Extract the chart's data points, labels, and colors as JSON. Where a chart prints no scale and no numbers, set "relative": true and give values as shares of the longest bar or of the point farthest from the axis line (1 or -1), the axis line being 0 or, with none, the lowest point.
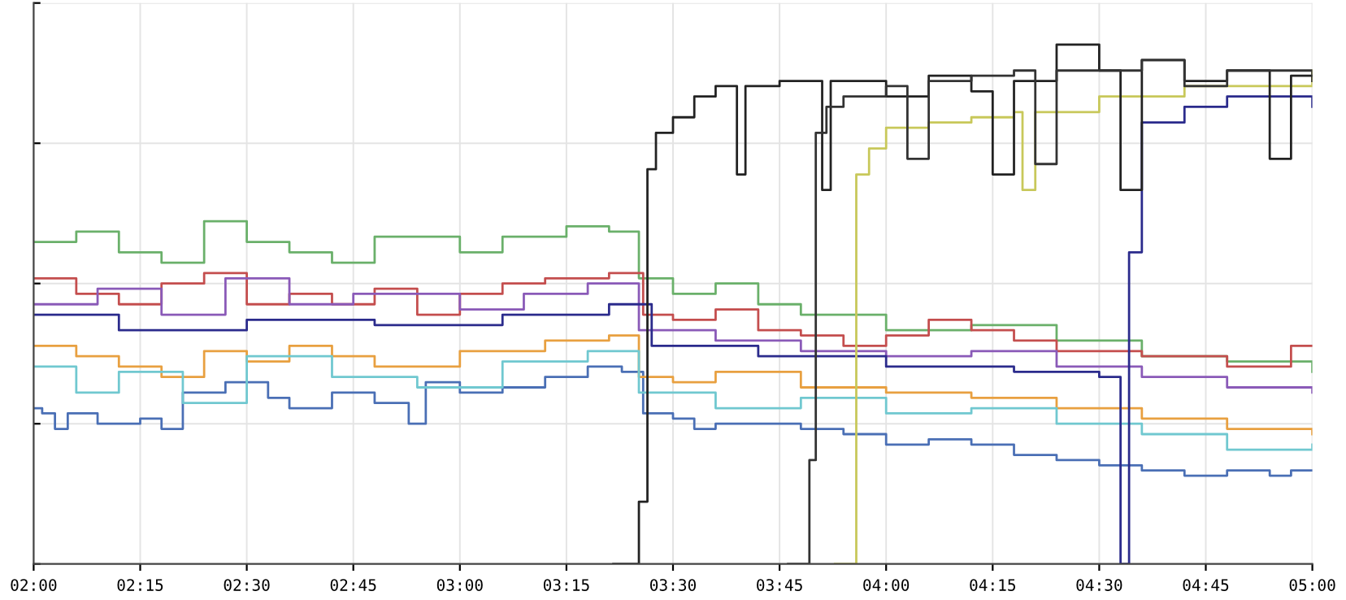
{
  "chart_data": {
    "type": "step",
    "relative": true,
    "grid": true,
    "tick_labels": "x",
    "line_style": "solid",
    "xlim": [
      2.0,
      5.0
    ],
    "xticks": [
      {
        "value": 2.0,
        "label": "02:00"
      },
      {
        "value": 2.25,
        "label": "02:15"
      },
      {
        "value": 2.5,
        "label": "02:30"
      },
      {
        "value": 2.75,
        "label": "02:45"
      },
      {
        "value": 3.0,
        "label": "03:00"
      },
      {
        "value": 3.25,
        "label": "03:15"
      },
      {
        "value": 3.5,
        "label": "03:30"
      },
      {
        "value": 3.75,
        "label": "03:45"
      },
      {
        "value": 4.0,
        "label": "04:00"
      },
      {
        "value": 4.25,
        "label": "04:15"
      },
      {
        "value": 4.5,
        "label": "04:30"
      },
      {
        "value": 4.75,
        "label": "04:45"
      },
      {
        "value": 5.0,
        "label": "05:00"
      }
    ],
    "series": [
      {
        "color": "#4a6fb5",
        "x": [
          2.0,
          2.02,
          2.05,
          2.08,
          2.15,
          2.25,
          2.3,
          2.35,
          2.45,
          2.55,
          2.6,
          2.7,
          2.8,
          2.88,
          2.92,
          3.0,
          3.1,
          3.2,
          3.3,
          3.38,
          3.43,
          3.5,
          3.55,
          3.6,
          3.7,
          3.8,
          3.9,
          4.0,
          4.1,
          4.2,
          4.3,
          4.4,
          4.5,
          4.6,
          4.7,
          4.8,
          4.9,
          4.95,
          5.0
        ],
        "values": [
          0.3,
          0.29,
          0.26,
          0.29,
          0.27,
          0.28,
          0.26,
          0.33,
          0.35,
          0.32,
          0.3,
          0.33,
          0.31,
          0.27,
          0.35,
          0.33,
          0.34,
          0.36,
          0.38,
          0.37,
          0.29,
          0.28,
          0.26,
          0.27,
          0.27,
          0.26,
          0.25,
          0.23,
          0.24,
          0.23,
          0.21,
          0.2,
          0.19,
          0.18,
          0.17,
          0.18,
          0.17,
          0.18,
          0.18
        ]
      },
      {
        "color": "#6ab06a",
        "x": [
          2.0,
          2.1,
          2.2,
          2.3,
          2.4,
          2.5,
          2.6,
          2.7,
          2.8,
          3.0,
          3.1,
          3.25,
          3.35,
          3.42,
          3.5,
          3.6,
          3.7,
          3.8,
          4.0,
          4.2,
          4.4,
          4.6,
          4.8,
          5.0
        ],
        "values": [
          0.62,
          0.64,
          0.6,
          0.58,
          0.66,
          0.62,
          0.6,
          0.58,
          0.63,
          0.6,
          0.63,
          0.65,
          0.64,
          0.55,
          0.52,
          0.54,
          0.5,
          0.48,
          0.45,
          0.46,
          0.43,
          0.4,
          0.39,
          0.37
        ]
      },
      {
        "color": "#c44e4e",
        "x": [
          2.0,
          2.1,
          2.2,
          2.3,
          2.4,
          2.5,
          2.6,
          2.7,
          2.8,
          2.9,
          3.0,
          3.1,
          3.2,
          3.35,
          3.43,
          3.5,
          3.6,
          3.7,
          3.8,
          3.9,
          4.0,
          4.1,
          4.2,
          4.3,
          4.4,
          4.6,
          4.8,
          4.95,
          5.0
        ],
        "values": [
          0.55,
          0.52,
          0.5,
          0.54,
          0.56,
          0.5,
          0.52,
          0.5,
          0.53,
          0.48,
          0.52,
          0.54,
          0.55,
          0.56,
          0.48,
          0.47,
          0.49,
          0.45,
          0.44,
          0.42,
          0.44,
          0.47,
          0.45,
          0.43,
          0.41,
          0.4,
          0.38,
          0.42,
          0.42
        ]
      },
      {
        "color": "#8a5ab8",
        "x": [
          2.0,
          2.15,
          2.3,
          2.45,
          2.6,
          2.75,
          3.0,
          3.15,
          3.3,
          3.42,
          3.6,
          3.8,
          4.0,
          4.2,
          4.4,
          4.6,
          4.8,
          5.0
        ],
        "values": [
          0.5,
          0.53,
          0.48,
          0.55,
          0.5,
          0.52,
          0.49,
          0.52,
          0.54,
          0.45,
          0.43,
          0.41,
          0.4,
          0.41,
          0.38,
          0.36,
          0.34,
          0.33
        ]
      },
      {
        "color": "#e8a040",
        "x": [
          2.0,
          2.1,
          2.2,
          2.3,
          2.4,
          2.5,
          2.6,
          2.7,
          2.8,
          3.0,
          3.2,
          3.35,
          3.42,
          3.5,
          3.6,
          3.8,
          4.0,
          4.2,
          4.4,
          4.6,
          4.8,
          5.0
        ],
        "values": [
          0.42,
          0.4,
          0.38,
          0.36,
          0.41,
          0.39,
          0.42,
          0.4,
          0.38,
          0.41,
          0.43,
          0.44,
          0.36,
          0.35,
          0.37,
          0.34,
          0.33,
          0.32,
          0.3,
          0.28,
          0.26,
          0.25
        ]
      },
      {
        "color": "#70c8d0",
        "x": [
          2.0,
          2.1,
          2.2,
          2.35,
          2.5,
          2.7,
          2.9,
          3.1,
          3.3,
          3.42,
          3.6,
          3.8,
          4.0,
          4.2,
          4.4,
          4.6,
          4.8,
          5.0
        ],
        "values": [
          0.38,
          0.33,
          0.37,
          0.31,
          0.4,
          0.36,
          0.34,
          0.39,
          0.41,
          0.33,
          0.3,
          0.32,
          0.29,
          0.3,
          0.27,
          0.25,
          0.22,
          0.23
        ]
      },
      {
        "color": "#2b2b8c",
        "x": [
          2.0,
          2.2,
          2.5,
          2.8,
          3.1,
          3.35,
          3.45,
          3.7,
          4.0,
          4.3,
          4.5,
          4.55,
          4.57,
          4.6,
          4.7,
          4.8,
          4.9,
          5.0
        ],
        "values": [
          0.48,
          0.45,
          0.47,
          0.46,
          0.48,
          0.5,
          0.42,
          0.4,
          0.38,
          0.37,
          0.36,
          0.0,
          0.6,
          0.85,
          0.88,
          0.9,
          0.9,
          0.88
        ]
      },
      {
        "color": "#c8c85a",
        "x": [
          3.88,
          3.93,
          3.96,
          4.0,
          4.1,
          4.2,
          4.3,
          4.32,
          4.35,
          4.5,
          4.7,
          5.0
        ],
        "values": [
          0.0,
          0.75,
          0.8,
          0.84,
          0.85,
          0.86,
          0.87,
          0.72,
          0.87,
          0.9,
          0.92,
          0.95
        ]
      },
      {
        "color": "#222222",
        "x": [
          3.36,
          3.42,
          3.44,
          3.46,
          3.5,
          3.55,
          3.6,
          3.65,
          3.67,
          3.75,
          3.85,
          3.87,
          4.0,
          4.1,
          4.2,
          4.25,
          4.3,
          4.4,
          4.5,
          4.55,
          4.6,
          4.7,
          4.8,
          4.9,
          4.95,
          5.0
        ],
        "values": [
          0.0,
          0.12,
          0.76,
          0.83,
          0.86,
          0.9,
          0.92,
          0.75,
          0.92,
          0.93,
          0.72,
          0.93,
          0.9,
          0.94,
          0.91,
          0.75,
          0.93,
          1.0,
          0.95,
          0.72,
          0.97,
          0.93,
          0.95,
          0.78,
          0.94,
          0.93
        ]
      },
      {
        "color": "#333333",
        "x": [
          3.77,
          3.82,
          3.835,
          3.86,
          3.9,
          4.0,
          4.05,
          4.1,
          4.2,
          4.3,
          4.35,
          4.4,
          4.6,
          4.7,
          4.8,
          5.0
        ],
        "values": [
          0.0,
          0.2,
          0.83,
          0.88,
          0.9,
          0.92,
          0.78,
          0.93,
          0.94,
          0.95,
          0.77,
          0.95,
          0.97,
          0.92,
          0.95,
          0.94
        ]
      }
    ]
  }
}
